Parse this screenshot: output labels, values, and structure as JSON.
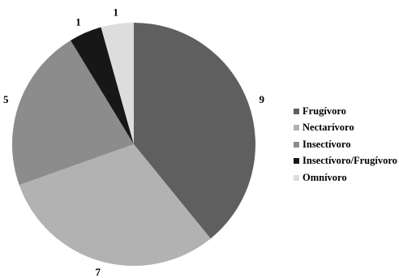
{
  "chart_data": {
    "type": "pie",
    "title": "",
    "categories": [
      "Frugívoro",
      "Nectarívoro",
      "Insectívoro",
      "Insectívoro/Frugívoro",
      "Omnívoro"
    ],
    "values": [
      9,
      7,
      5,
      1,
      1
    ],
    "data_labels": [
      "9",
      "7",
      "5",
      "1",
      "1"
    ],
    "colors": [
      "#5f5f5f",
      "#b2b2b2",
      "#8c8c8c",
      "#171717",
      "#dddddd"
    ],
    "start": "12 o'clock",
    "direction": "clockwise",
    "legend": {
      "placement": "right",
      "entries": [
        "Frugívoro",
        "Nectarívoro",
        "Insectívoro",
        "Insectívoro/Frugívoro",
        "Omnívoro"
      ]
    }
  }
}
